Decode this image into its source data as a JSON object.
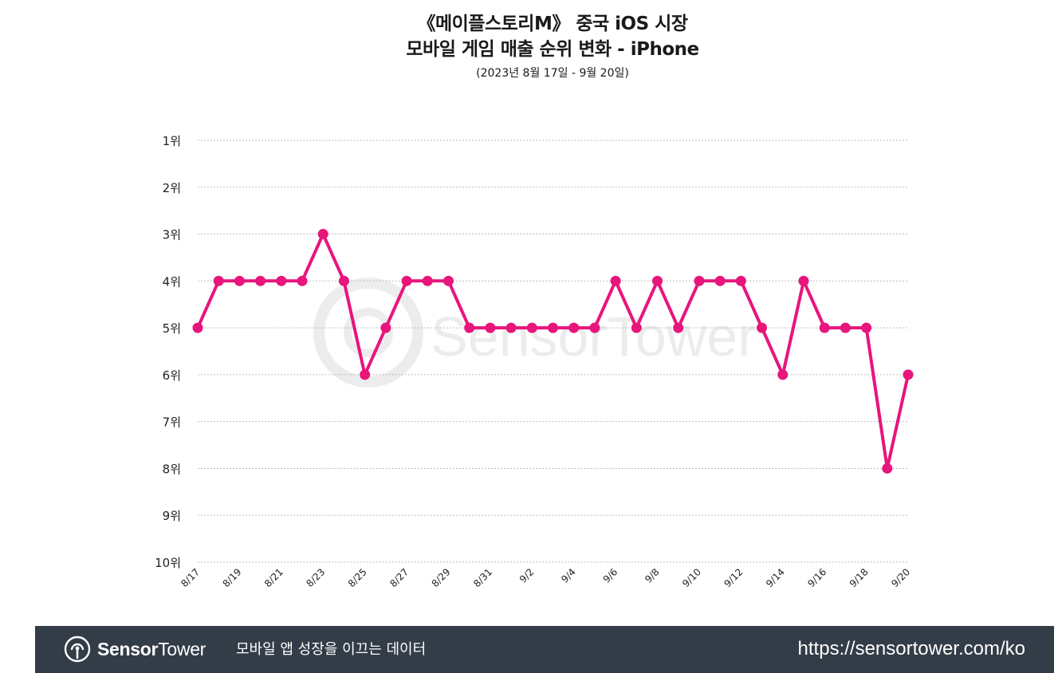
{
  "title": {
    "line1": "《메이플스토리M》 중국 iOS 시장",
    "line2": "모바일 게임 매출 순위 변화 - iPhone",
    "subtitle": "(2023년 8월 17일 - 9월 20일)"
  },
  "watermark": {
    "text": "SensorTower"
  },
  "chart_data": {
    "type": "line",
    "title": "《메이플스토리M》 중국 iOS 시장 모바일 게임 매출 순위 변화 - iPhone",
    "xlabel": "",
    "ylabel": "",
    "y_inverted": true,
    "ylim": [
      1,
      10
    ],
    "y_ticks": [
      1,
      2,
      3,
      4,
      5,
      6,
      7,
      8,
      9,
      10
    ],
    "y_tick_labels": [
      "1위",
      "2위",
      "3위",
      "4위",
      "5위",
      "6위",
      "7위",
      "8위",
      "9위",
      "10위"
    ],
    "x_tick_labels": [
      "8/17",
      "8/19",
      "8/21",
      "8/23",
      "8/25",
      "8/27",
      "8/29",
      "8/31",
      "9/2",
      "9/4",
      "9/6",
      "9/8",
      "9/10",
      "9/12",
      "9/14",
      "9/16",
      "9/18",
      "9/20"
    ],
    "grid": true,
    "legend": "none",
    "series": [
      {
        "name": "메이플스토리M",
        "color": "#e8157c",
        "x": [
          "8/17",
          "8/18",
          "8/19",
          "8/20",
          "8/21",
          "8/22",
          "8/23",
          "8/24",
          "8/25",
          "8/26",
          "8/27",
          "8/28",
          "8/29",
          "8/30",
          "8/31",
          "9/1",
          "9/2",
          "9/3",
          "9/4",
          "9/5",
          "9/6",
          "9/7",
          "9/8",
          "9/9",
          "9/10",
          "9/11",
          "9/12",
          "9/13",
          "9/14",
          "9/15",
          "9/16",
          "9/17",
          "9/18",
          "9/19",
          "9/20"
        ],
        "values": [
          5,
          4,
          4,
          4,
          4,
          4,
          3,
          4,
          6,
          5,
          4,
          4,
          4,
          5,
          5,
          5,
          5,
          5,
          5,
          5,
          4,
          5,
          4,
          5,
          4,
          4,
          4,
          5,
          6,
          4,
          5,
          5,
          5,
          8,
          6
        ]
      }
    ]
  },
  "footer": {
    "brand_bold": "Sensor",
    "brand_light": "Tower",
    "tagline": "모바일 앱 성장을 이끄는 데이터",
    "url": "https://sensortower.com/ko"
  }
}
